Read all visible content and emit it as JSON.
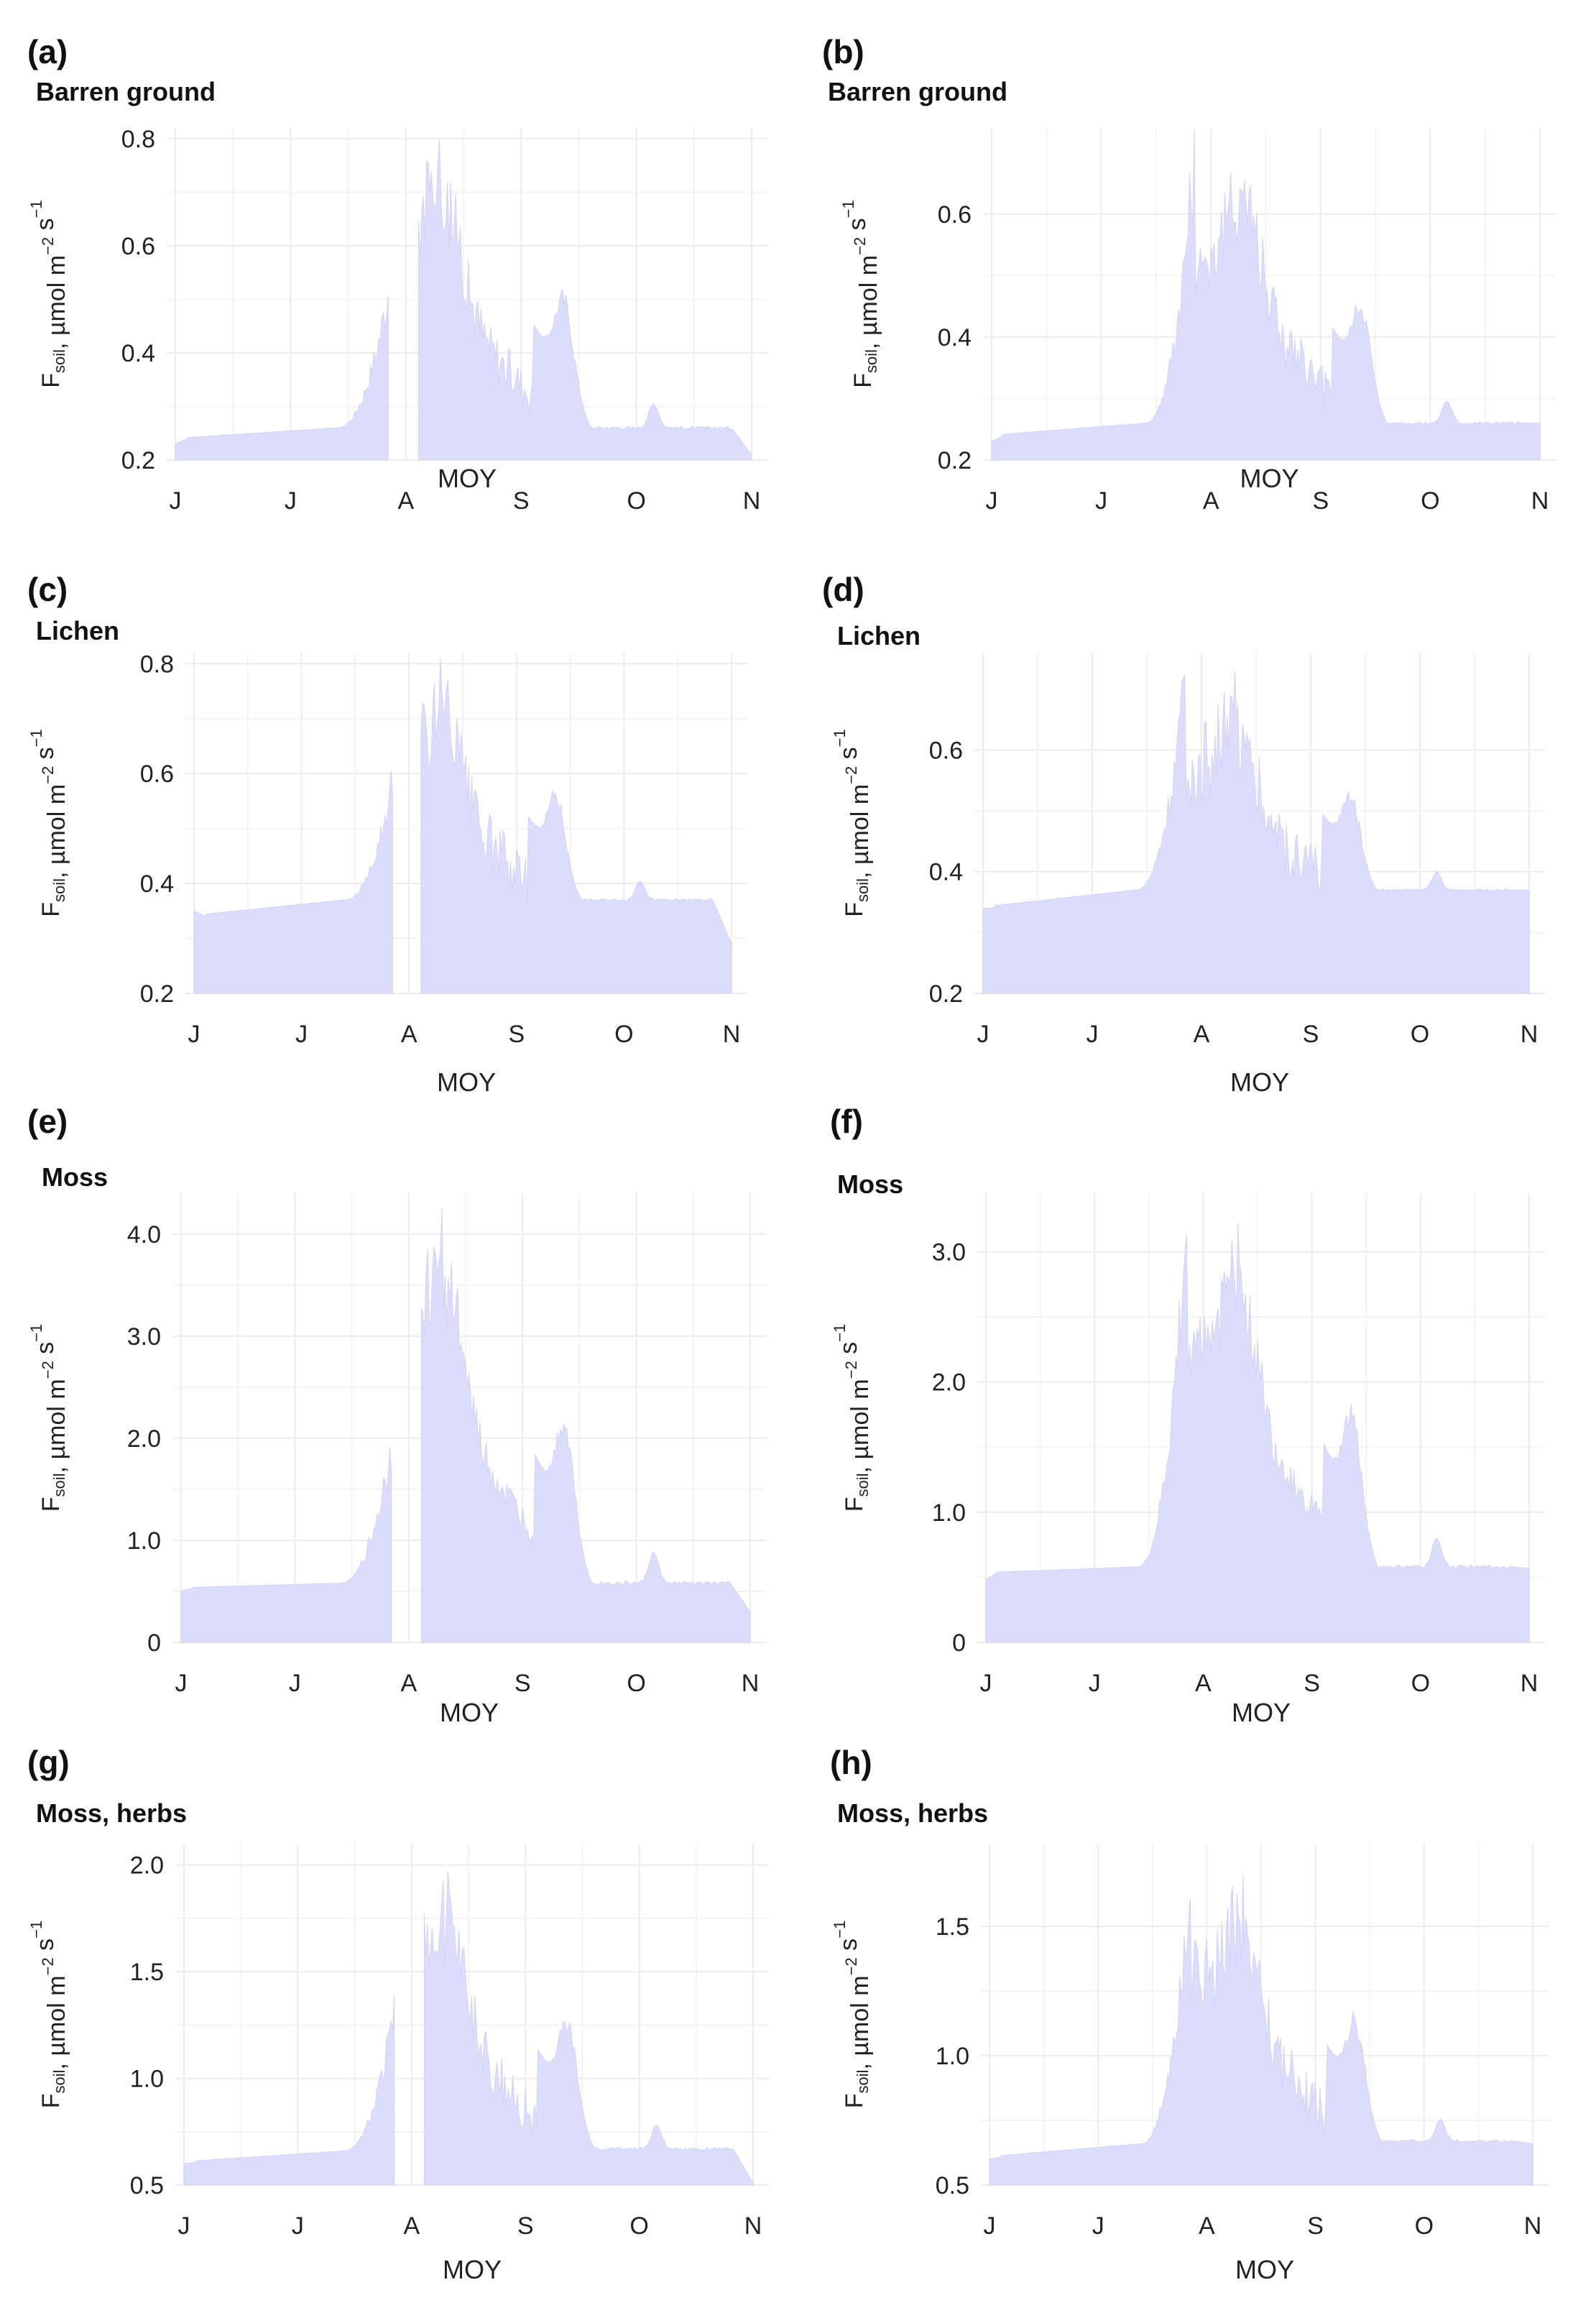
{
  "figure": {
    "month_ticks": [
      "J",
      "J",
      "A",
      "S",
      "O",
      "N"
    ],
    "area_color": "#dcdcfb",
    "gap_color": "#ffffff"
  },
  "chart_data": [
    {
      "type": "area",
      "label": "(a)",
      "title": "Barren ground",
      "xlabel": "MOY",
      "ylabel": {
        "main": "F",
        "sub": "soil",
        "rest": ", µmol m",
        "sup1": "−2",
        "mid": " s",
        "sup2": "−1"
      },
      "x_ticks": [
        "J",
        "J",
        "A",
        "S",
        "O",
        "N"
      ],
      "y_ticks": [
        "0.2",
        "0.4",
        "0.6",
        "0.8"
      ],
      "y_tick_values": [
        0.2,
        0.4,
        0.6,
        0.8
      ],
      "ylim": [
        0.2,
        0.82
      ],
      "baseline": 0.2,
      "gap": [
        0.37,
        0.42
      ],
      "profile": {
        "start": 0.23,
        "plateau": 0.26,
        "rise_peak": 0.52,
        "main_peak": 0.82,
        "late_plateau": 0.26,
        "end": 0.21
      }
    },
    {
      "type": "area",
      "label": "(b)",
      "title": "Barren ground",
      "xlabel": "MOY",
      "ylabel": {
        "main": "F",
        "sub": "soil",
        "rest": ", µmol m",
        "sup1": "−2",
        "mid": " s",
        "sup2": "−1"
      },
      "x_ticks": [
        "J",
        "J",
        "A",
        "S",
        "O",
        "N"
      ],
      "y_ticks": [
        "0.2",
        "0.4",
        "0.6"
      ],
      "y_tick_values": [
        0.2,
        0.4,
        0.6
      ],
      "ylim": [
        0.2,
        0.74
      ],
      "baseline": 0.2,
      "gap": null,
      "profile": {
        "start": 0.23,
        "plateau": 0.26,
        "rise_peak": 0.69,
        "main_peak": 0.71,
        "late_plateau": 0.26,
        "end": 0.26
      }
    },
    {
      "type": "area",
      "label": "(c)",
      "title": "Lichen",
      "xlabel": "MOY",
      "ylabel": {
        "main": "F",
        "sub": "soil",
        "rest": ", µmol m",
        "sup1": "−2",
        "mid": " s",
        "sup2": "−1"
      },
      "x_ticks": [
        "J",
        "J",
        "A",
        "S",
        "O",
        "N"
      ],
      "y_ticks": [
        "0.2",
        "0.4",
        "0.6",
        "0.8"
      ],
      "y_tick_values": [
        0.2,
        0.4,
        0.6,
        0.8
      ],
      "ylim": [
        0.2,
        0.82
      ],
      "baseline": 0.2,
      "gap": [
        0.37,
        0.42
      ],
      "profile": {
        "start": 0.35,
        "plateau": 0.37,
        "rise_peak": 0.59,
        "main_peak": 0.81,
        "late_plateau": 0.37,
        "end": 0.29
      }
    },
    {
      "type": "area",
      "label": "(d)",
      "title": "Lichen",
      "xlabel": "MOY",
      "ylabel": {
        "main": "F",
        "sub": "soil",
        "rest": ", µmol m",
        "sup1": "−2",
        "mid": " s",
        "sup2": "−1"
      },
      "x_ticks": [
        "J",
        "J",
        "A",
        "S",
        "O",
        "N"
      ],
      "y_ticks": [
        "0.2",
        "0.4",
        "0.6"
      ],
      "y_tick_values": [
        0.2,
        0.4,
        0.6
      ],
      "ylim": [
        0.2,
        0.76
      ],
      "baseline": 0.2,
      "gap": null,
      "profile": {
        "start": 0.34,
        "plateau": 0.37,
        "rise_peak": 0.71,
        "main_peak": 0.73,
        "late_plateau": 0.37,
        "end": 0.37
      }
    },
    {
      "type": "area",
      "label": "(e)",
      "title": "Moss",
      "xlabel": "MOY",
      "ylabel": {
        "main": "F",
        "sub": "soil",
        "rest": ", µmol m",
        "sup1": "−2",
        "mid": " s",
        "sup2": "−1"
      },
      "x_ticks": [
        "J",
        "J",
        "A",
        "S",
        "O",
        "N"
      ],
      "y_ticks": [
        "0",
        "1.0",
        "2.0",
        "3.0",
        "4.0"
      ],
      "y_tick_values": [
        0,
        1,
        2,
        3,
        4
      ],
      "ylim": [
        0,
        4.4
      ],
      "baseline": 0,
      "gap": [
        0.37,
        0.42
      ],
      "profile": {
        "start": 0.5,
        "plateau": 0.58,
        "rise_peak": 1.95,
        "main_peak": 4.25,
        "late_plateau": 0.58,
        "end": 0.3
      }
    },
    {
      "type": "area",
      "label": "(f)",
      "title": "Moss",
      "xlabel": "MOY",
      "ylabel": {
        "main": "F",
        "sub": "soil",
        "rest": ", µmol m",
        "sup1": "−2",
        "mid": " s",
        "sup2": "−1"
      },
      "x_ticks": [
        "J",
        "J",
        "A",
        "S",
        "O",
        "N"
      ],
      "y_ticks": [
        "0",
        "1.0",
        "2.0",
        "3.0"
      ],
      "y_tick_values": [
        0,
        1,
        2,
        3
      ],
      "ylim": [
        0,
        3.45
      ],
      "baseline": 0,
      "gap": null,
      "profile": {
        "start": 0.48,
        "plateau": 0.58,
        "rise_peak": 3.2,
        "main_peak": 3.32,
        "late_plateau": 0.58,
        "end": 0.57
      }
    },
    {
      "type": "area",
      "label": "(g)",
      "title": "Moss, herbs",
      "xlabel": "MOY",
      "ylabel": {
        "main": "F",
        "sub": "soil",
        "rest": ", µmol m",
        "sup1": "−2",
        "mid": " s",
        "sup2": "−1"
      },
      "x_ticks": [
        "J",
        "J",
        "A",
        "S",
        "O",
        "N"
      ],
      "y_ticks": [
        "0.5",
        "1.0",
        "1.5",
        "2.0"
      ],
      "y_tick_values": [
        0.5,
        1.0,
        1.5,
        2.0
      ],
      "ylim": [
        0.5,
        2.1
      ],
      "baseline": 0.5,
      "gap": [
        0.37,
        0.42
      ],
      "profile": {
        "start": 0.6,
        "plateau": 0.66,
        "rise_peak": 1.3,
        "main_peak": 2.02,
        "late_plateau": 0.67,
        "end": 0.51
      }
    },
    {
      "type": "area",
      "label": "(h)",
      "title": "Moss, herbs",
      "xlabel": "MOY",
      "ylabel": {
        "main": "F",
        "sub": "soil",
        "rest": ", µmol m",
        "sup1": "−2",
        "mid": " s",
        "sup2": "−1"
      },
      "x_ticks": [
        "J",
        "J",
        "A",
        "S",
        "O",
        "N"
      ],
      "y_ticks": [
        "0.5",
        "1.0",
        "1.5"
      ],
      "y_tick_values": [
        0.5,
        1.0,
        1.5
      ],
      "ylim": [
        0.5,
        1.82
      ],
      "baseline": 0.5,
      "gap": null,
      "profile": {
        "start": 0.6,
        "plateau": 0.66,
        "rise_peak": 1.71,
        "main_peak": 1.75,
        "late_plateau": 0.67,
        "end": 0.66
      }
    }
  ]
}
